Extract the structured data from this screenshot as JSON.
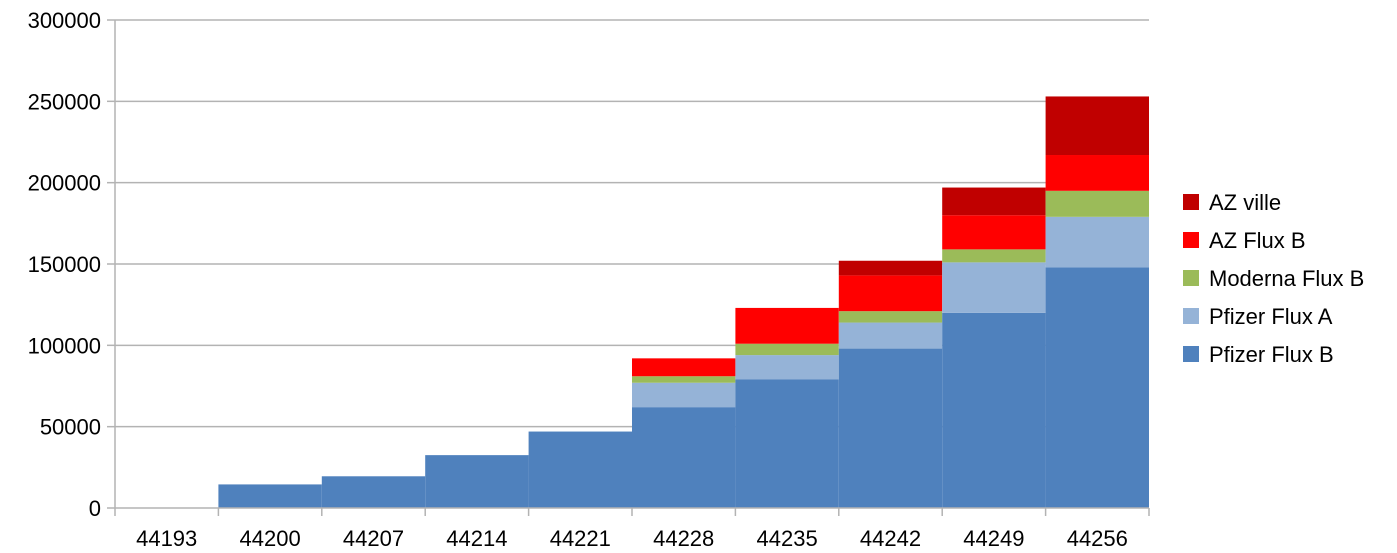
{
  "chart_data": {
    "type": "bar",
    "stacked": true,
    "categories": [
      "44193",
      "44200",
      "44207",
      "44214",
      "44221",
      "44228",
      "44235",
      "44242",
      "44249",
      "44256"
    ],
    "series": [
      {
        "name": "Pfizer Flux B",
        "color": "#4f81bd",
        "values": [
          0,
          14500,
          19500,
          32500,
          47000,
          62000,
          79000,
          98000,
          120000,
          148000
        ]
      },
      {
        "name": "Pfizer Flux A",
        "color": "#95b3d7",
        "values": [
          0,
          0,
          0,
          0,
          0,
          15000,
          15000,
          16000,
          31000,
          31000
        ]
      },
      {
        "name": "Moderna Flux B",
        "color": "#9bbb59",
        "values": [
          0,
          0,
          0,
          0,
          0,
          4000,
          7000,
          7000,
          8000,
          16000
        ]
      },
      {
        "name": "AZ Flux B",
        "color": "#ff0000",
        "values": [
          0,
          0,
          0,
          0,
          0,
          11000,
          22000,
          22000,
          21000,
          22000
        ]
      },
      {
        "name": "AZ ville",
        "color": "#c00000",
        "values": [
          0,
          0,
          0,
          0,
          0,
          0,
          0,
          9000,
          17000,
          36000
        ]
      }
    ],
    "y_ticks": [
      "0",
      "50000",
      "100000",
      "150000",
      "200000",
      "250000",
      "300000"
    ],
    "ylim": [
      0,
      300000
    ],
    "grid": "horizontal",
    "legend_position": "right",
    "title": "",
    "xlabel": "",
    "ylabel": ""
  }
}
